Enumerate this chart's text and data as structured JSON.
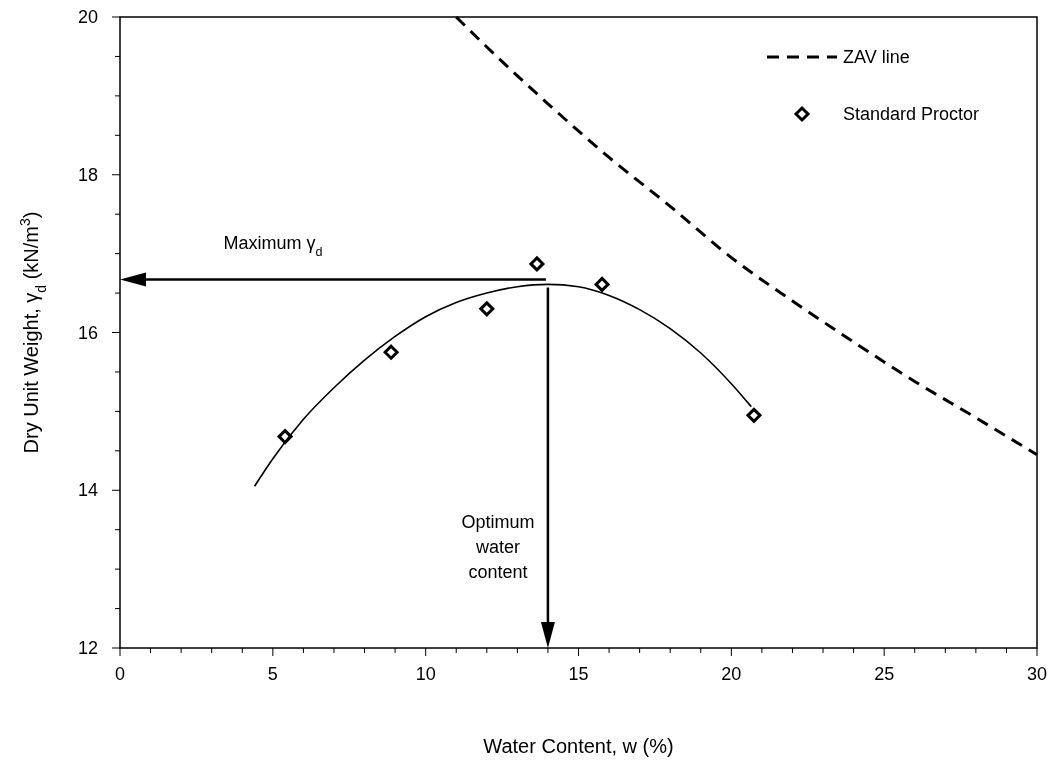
{
  "chart_data": {
    "type": "line",
    "xlabel": "Water Content, w  (%)",
    "ylabel": "Dry Unit Weight, γ$_{d}$  (kN/m$^{3}$)",
    "xlim": [
      0,
      30
    ],
    "ylim": [
      12,
      20
    ],
    "xticks": [
      0,
      {
        "value": 1,
        "label": null
      },
      {
        "value": 2,
        "label": null
      },
      {
        "value": 3,
        "label": null
      },
      {
        "value": 4,
        "label": null
      },
      5,
      {
        "value": 6,
        "label": null
      },
      {
        "value": 7,
        "label": null
      },
      {
        "value": 8,
        "label": null
      },
      {
        "value": 9,
        "label": null
      },
      10,
      {
        "value": 11,
        "label": null
      },
      {
        "value": 12,
        "label": null
      },
      {
        "value": 13,
        "label": null
      },
      {
        "value": 14,
        "label": null
      },
      15,
      {
        "value": 16,
        "label": null
      },
      {
        "value": 17,
        "label": null
      },
      {
        "value": 18,
        "label": null
      },
      {
        "value": 19,
        "label": null
      },
      20,
      {
        "value": 21,
        "label": null
      },
      {
        "value": 22,
        "label": null
      },
      {
        "value": 23,
        "label": null
      },
      {
        "value": 24,
        "label": null
      },
      25,
      {
        "value": 26,
        "label": null
      },
      {
        "value": 27,
        "label": null
      },
      {
        "value": 28,
        "label": null
      },
      {
        "value": 29,
        "label": null
      },
      30
    ],
    "yticks": [
      12,
      {
        "value": 12.5,
        "label": null
      },
      {
        "value": 13,
        "label": null
      },
      {
        "value": 13.5,
        "label": null
      },
      14,
      {
        "value": 14.5,
        "label": null
      },
      {
        "value": 15,
        "label": null
      },
      {
        "value": 15.5,
        "label": null
      },
      16,
      {
        "value": 16.5,
        "label": null
      },
      {
        "value": 17,
        "label": null
      },
      {
        "value": 17.5,
        "label": null
      },
      18,
      {
        "value": 18.5,
        "label": null
      },
      {
        "value": 19,
        "label": null
      },
      {
        "value": 19.5,
        "label": null
      },
      20
    ],
    "legend": "top right",
    "grid": false,
    "series": [
      {
        "name": "ZAV line",
        "color": "#000000",
        "line_style": "dashed",
        "marker": "none",
        "x": [
          11,
          12,
          14,
          16,
          18,
          20,
          22,
          24,
          26,
          28,
          30
        ],
        "values": [
          20,
          19.62,
          18.9,
          18.22,
          17.6,
          16.95,
          16.4,
          15.88,
          15.38,
          14.92,
          14.45
        ]
      },
      {
        "name": "Standard Proctor",
        "type": "scatter",
        "color": "#000000",
        "marker": "diamond",
        "x": [
          5.4,
          8.87,
          12,
          13.64,
          15.77,
          20.74
        ],
        "values": [
          14.68,
          15.75,
          16.3,
          16.87,
          16.61,
          14.95
        ]
      },
      {
        "color": "#000000",
        "line_style": "solid",
        "marker": "none",
        "x": [
          4.4,
          5,
          6,
          7,
          8,
          9,
          10,
          11,
          12,
          13,
          14,
          15,
          16,
          17,
          18,
          19,
          20,
          20.65
        ],
        "values": [
          14.05,
          14.4,
          14.9,
          15.3,
          15.65,
          15.95,
          16.2,
          16.38,
          16.5,
          16.58,
          16.61,
          16.58,
          16.47,
          16.29,
          16.05,
          15.74,
          15.35,
          15.06
        ]
      }
    ],
    "annotations": [
      "Maximum γ$_{d}$",
      "Optimum water content"
    ]
  }
}
